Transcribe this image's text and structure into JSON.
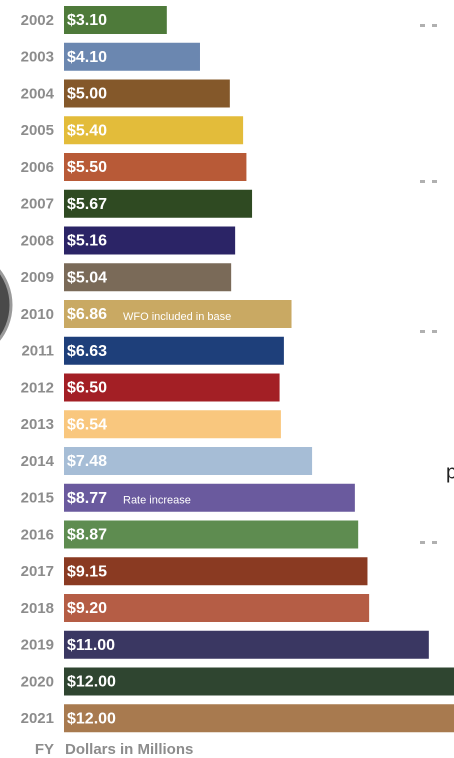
{
  "chart_data": {
    "type": "hbar",
    "categories": [
      "2002",
      "2003",
      "2004",
      "2005",
      "2006",
      "2007",
      "2008",
      "2009",
      "2010",
      "2011",
      "2012",
      "2013",
      "2014",
      "2015",
      "2016",
      "2017",
      "2018",
      "2019",
      "2020",
      "2021"
    ],
    "values": [
      3.1,
      4.1,
      5.0,
      5.4,
      5.5,
      5.67,
      5.16,
      5.04,
      6.86,
      6.63,
      6.5,
      6.54,
      7.48,
      8.77,
      8.87,
      9.15,
      9.2,
      11.0,
      12.0,
      12.0
    ],
    "value_labels": [
      "$3.10",
      "$4.10",
      "$5.00",
      "$5.40",
      "$5.50",
      "$5.67",
      "$5.16",
      "$5.04",
      "$6.86",
      "$6.63",
      "$6.50",
      "$6.54",
      "$7.48",
      "$8.77",
      "$8.87",
      "$9.15",
      "$9.20",
      "$11.00",
      "$12.00",
      "$12.00"
    ],
    "colors": [
      "#4e7a3a",
      "#6b87b0",
      "#84582a",
      "#e3bc3a",
      "#b85a37",
      "#2f4a22",
      "#2b2466",
      "#7a6a58",
      "#c9a963",
      "#1e3f7a",
      "#a31f25",
      "#f9c77e",
      "#a6bdd6",
      "#6a5a9e",
      "#5e8c50",
      "#8a3a22",
      "#b55d45",
      "#3a3762",
      "#2f4530",
      "#a87a4f"
    ],
    "annotations": [
      null,
      null,
      null,
      null,
      null,
      null,
      null,
      null,
      "WFO included in base",
      null,
      null,
      null,
      null,
      "Rate increase",
      null,
      null,
      null,
      null,
      null,
      null
    ],
    "category_axis_label": "FY",
    "value_axis_label": "Dollars in Millions",
    "xlim": [
      0,
      12
    ],
    "side_text": "p"
  }
}
